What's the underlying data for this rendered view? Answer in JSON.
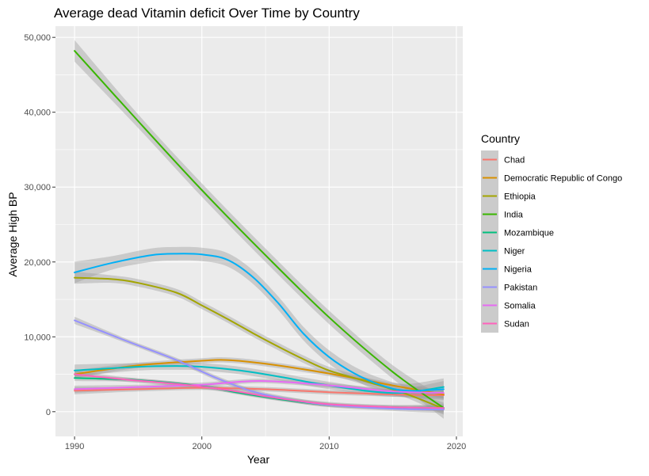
{
  "chart_data": {
    "type": "line",
    "title": "Average dead Vitamin deficit Over Time by Country",
    "xlabel": "Year",
    "ylabel": "Average High BP",
    "xlim": [
      1988.5,
      2020.5
    ],
    "ylim": [
      -3300,
      51500
    ],
    "x_ticks": [
      1990,
      2000,
      2010,
      2020
    ],
    "x_tick_labels": [
      "1990",
      "2000",
      "2010",
      "2020"
    ],
    "y_ticks": [
      0,
      10000,
      20000,
      30000,
      40000,
      50000
    ],
    "y_tick_labels": [
      "0",
      "10,000",
      "20,000",
      "30,000",
      "40,000",
      "50,000"
    ],
    "grid": true,
    "smoothed_with_confidence_band": true,
    "legend": {
      "title": "Country",
      "position": "right"
    },
    "panel_background": "#EBEBEB",
    "series": [
      {
        "name": "Chad",
        "color": "#F8766D",
        "band": 300,
        "points": [
          [
            1990,
            2800
          ],
          [
            1995,
            3000
          ],
          [
            2000,
            3200
          ],
          [
            2005,
            3000
          ],
          [
            2010,
            2600
          ],
          [
            2015,
            2300
          ],
          [
            2019,
            2200
          ]
        ]
      },
      {
        "name": "Democratic Republic of Congo",
        "color": "#D89000",
        "band": 350,
        "points": [
          [
            1990,
            5000
          ],
          [
            1995,
            6200
          ],
          [
            2000,
            6800
          ],
          [
            2002,
            6900
          ],
          [
            2005,
            6400
          ],
          [
            2010,
            5100
          ],
          [
            2015,
            3500
          ],
          [
            2019,
            2300
          ]
        ]
      },
      {
        "name": "Ethiopia",
        "color": "#A3A500",
        "band": 500,
        "points": [
          [
            1990,
            17900
          ],
          [
            1993,
            17700
          ],
          [
            1995,
            17200
          ],
          [
            1998,
            15900
          ],
          [
            2000,
            14200
          ],
          [
            2002,
            12400
          ],
          [
            2004,
            10500
          ],
          [
            2006,
            8700
          ],
          [
            2008,
            7000
          ],
          [
            2010,
            5500
          ],
          [
            2013,
            4000
          ],
          [
            2016,
            2400
          ],
          [
            2019,
            400
          ]
        ]
      },
      {
        "name": "India",
        "color": "#39B600",
        "band": 900,
        "points": [
          [
            1990,
            48200
          ],
          [
            1995,
            38800
          ],
          [
            2000,
            29600
          ],
          [
            2005,
            20900
          ],
          [
            2010,
            12600
          ],
          [
            2015,
            5300
          ],
          [
            2019,
            500
          ]
        ]
      },
      {
        "name": "Mozambique",
        "color": "#00BF7D",
        "band": 250,
        "points": [
          [
            1990,
            4500
          ],
          [
            1995,
            4200
          ],
          [
            2000,
            3400
          ],
          [
            2003,
            2500
          ],
          [
            2006,
            1700
          ],
          [
            2010,
            900
          ],
          [
            2015,
            600
          ],
          [
            2019,
            500
          ]
        ]
      },
      {
        "name": "Niger",
        "color": "#00BFC4",
        "band": 500,
        "points": [
          [
            1990,
            5500
          ],
          [
            1995,
            6000
          ],
          [
            1998,
            6100
          ],
          [
            2000,
            6000
          ],
          [
            2003,
            5500
          ],
          [
            2006,
            4700
          ],
          [
            2010,
            3500
          ],
          [
            2015,
            2500
          ],
          [
            2019,
            3300
          ]
        ]
      },
      {
        "name": "Nigeria",
        "color": "#00B0F6",
        "band": 900,
        "points": [
          [
            1990,
            18600
          ],
          [
            1993,
            19900
          ],
          [
            1996,
            20900
          ],
          [
            1998,
            21100
          ],
          [
            2000,
            21000
          ],
          [
            2002,
            20300
          ],
          [
            2004,
            18000
          ],
          [
            2006,
            14500
          ],
          [
            2008,
            10400
          ],
          [
            2010,
            7300
          ],
          [
            2012,
            5100
          ],
          [
            2014,
            3600
          ],
          [
            2016,
            2800
          ],
          [
            2019,
            3000
          ]
        ]
      },
      {
        "name": "Pakistan",
        "color": "#9590FF",
        "band": 300,
        "points": [
          [
            1990,
            12200
          ],
          [
            1994,
            9500
          ],
          [
            1998,
            6900
          ],
          [
            2001,
            4600
          ],
          [
            2004,
            2700
          ],
          [
            2007,
            1600
          ],
          [
            2010,
            900
          ],
          [
            2015,
            400
          ],
          [
            2019,
            300
          ]
        ]
      },
      {
        "name": "Somalia",
        "color": "#E76BF3",
        "band": 300,
        "points": [
          [
            1990,
            3000
          ],
          [
            1995,
            3300
          ],
          [
            2000,
            3600
          ],
          [
            2003,
            4000
          ],
          [
            2005,
            4100
          ],
          [
            2008,
            3800
          ],
          [
            2012,
            3200
          ],
          [
            2015,
            2700
          ],
          [
            2019,
            2500
          ]
        ]
      },
      {
        "name": "Sudan",
        "color": "#FF62BC",
        "band": 300,
        "points": [
          [
            1990,
            5000
          ],
          [
            1994,
            4300
          ],
          [
            1998,
            3700
          ],
          [
            2002,
            2900
          ],
          [
            2006,
            1800
          ],
          [
            2010,
            1000
          ],
          [
            2015,
            600
          ],
          [
            2019,
            500
          ]
        ]
      }
    ]
  }
}
